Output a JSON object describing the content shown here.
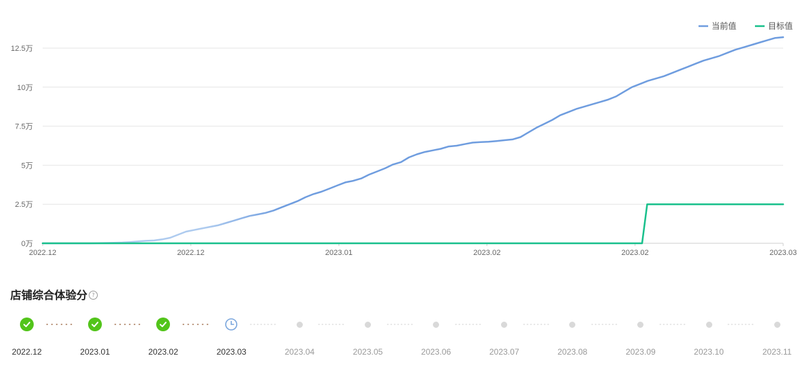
{
  "chart_data": {
    "type": "line",
    "legend": {
      "placement": "top-right",
      "items": [
        {
          "name": "当前值",
          "color": "#6f9ddf"
        },
        {
          "name": "目标值",
          "color": "#19c08c"
        }
      ]
    },
    "y_ticks": [
      "0万",
      "2.5万",
      "5万",
      "7.5万",
      "10万",
      "12.5万"
    ],
    "ylim": [
      0,
      132000
    ],
    "x_ticks": [
      "2022.12",
      "2022.12",
      "2023.01",
      "2023.02",
      "2023.02",
      "2023.03"
    ],
    "grid": true,
    "series": [
      {
        "name": "当前值",
        "color": "#6f9ddf",
        "fade_color": "#aecbef",
        "values": [
          0,
          0,
          0,
          0,
          0,
          0,
          0,
          100,
          200,
          300,
          500,
          800,
          1200,
          1600,
          1800,
          2500,
          3500,
          5500,
          7500,
          8500,
          9500,
          10500,
          11500,
          13000,
          14500,
          16000,
          17500,
          18500,
          19500,
          21000,
          23000,
          25000,
          27000,
          29500,
          31500,
          33000,
          35000,
          37000,
          39000,
          40000,
          41500,
          44000,
          46000,
          48000,
          50500,
          52000,
          55000,
          57000,
          58500,
          59500,
          60500,
          62000,
          62500,
          63500,
          64500,
          64800,
          65000,
          65500,
          66000,
          66500,
          68000,
          71000,
          74000,
          76500,
          79000,
          82000,
          84000,
          86000,
          87500,
          89000,
          90500,
          92000,
          94000,
          97000,
          100000,
          102000,
          104000,
          105500,
          107000,
          109000,
          111000,
          113000,
          115000,
          117000,
          118500,
          120000,
          122000,
          124000,
          125500,
          127000,
          128500,
          130000,
          131500,
          132000
        ]
      },
      {
        "name": "目标值",
        "color": "#19c08c",
        "values": [
          0,
          0,
          0,
          0,
          0,
          0,
          0,
          0,
          0,
          0,
          0,
          0,
          0,
          0,
          0,
          0,
          0,
          0,
          0,
          0,
          0,
          0,
          0,
          0,
          0,
          0,
          0,
          0,
          0,
          0,
          0,
          0,
          0,
          0,
          0,
          0,
          0,
          0,
          0,
          0,
          0,
          0,
          0,
          0,
          0,
          0,
          0,
          0,
          0,
          0,
          0,
          0,
          0,
          0,
          0,
          0,
          0,
          0,
          0,
          0,
          0,
          0,
          0,
          0,
          0,
          0,
          0,
          0,
          0,
          0,
          0,
          0,
          0,
          0,
          0,
          0,
          0,
          0,
          0,
          0,
          0,
          0,
          0,
          0,
          0,
          0,
          0,
          0,
          0,
          0,
          0,
          0,
          0,
          0,
          0,
          0,
          0,
          0,
          0,
          0,
          0,
          0,
          0,
          0,
          0,
          0,
          0,
          0,
          0,
          0,
          0,
          0,
          0,
          0,
          0,
          0,
          0,
          0,
          0,
          0,
          25000,
          25000,
          25000,
          25000,
          25000,
          25000,
          25000,
          25000,
          25000,
          25000,
          25000,
          25000,
          25000,
          25000,
          25000,
          25000,
          25000,
          25000,
          25000,
          25000,
          25000,
          25000,
          25000,
          25000,
          25000,
          25000,
          25000,
          25000
        ]
      }
    ]
  },
  "section": {
    "title": "店铺综合体验分",
    "help_icon": "question-circle-icon"
  },
  "timeline": {
    "items": [
      {
        "label": "2022.12",
        "status": "done"
      },
      {
        "label": "2023.01",
        "status": "done"
      },
      {
        "label": "2023.02",
        "status": "done"
      },
      {
        "label": "2023.03",
        "status": "current"
      },
      {
        "label": "2023.04",
        "status": "future"
      },
      {
        "label": "2023.05",
        "status": "future"
      },
      {
        "label": "2023.06",
        "status": "future"
      },
      {
        "label": "2023.07",
        "status": "future"
      },
      {
        "label": "2023.08",
        "status": "future"
      },
      {
        "label": "2023.09",
        "status": "future"
      },
      {
        "label": "2023.10",
        "status": "future"
      },
      {
        "label": "2023.11",
        "status": "future"
      }
    ]
  }
}
